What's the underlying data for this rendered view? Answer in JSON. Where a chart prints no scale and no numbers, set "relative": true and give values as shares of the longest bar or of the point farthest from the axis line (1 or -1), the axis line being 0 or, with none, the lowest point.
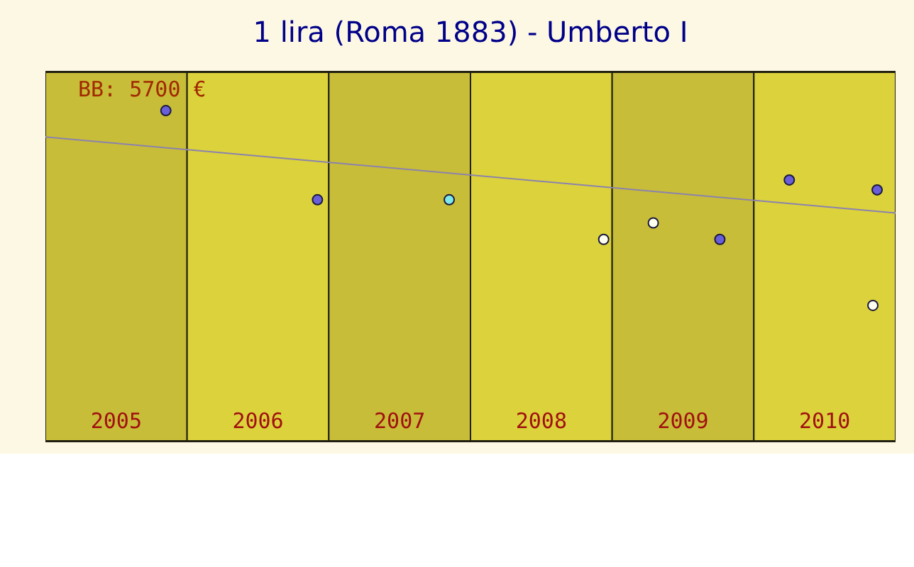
{
  "chart_data": {
    "type": "scatter",
    "title": "1 lira (Roma 1883) - Umberto I",
    "annotations": [
      "BB: 5700 €"
    ],
    "relative": true,
    "xlim": [
      2005,
      2011
    ],
    "xticks": [
      {
        "value": 2005.5,
        "label": "2005"
      },
      {
        "value": 2006.5,
        "label": "2006"
      },
      {
        "value": 2007.5,
        "label": "2007"
      },
      {
        "value": 2008.5,
        "label": "2008"
      },
      {
        "value": 2009.5,
        "label": "2009"
      },
      {
        "value": 2010.5,
        "label": "2010"
      }
    ],
    "bands": [
      {
        "axis": "x",
        "from": 2005,
        "to": 2006,
        "color": "#c8bd38"
      },
      {
        "axis": "x",
        "from": 2006,
        "to": 2007,
        "color": "#dcd23c"
      },
      {
        "axis": "x",
        "from": 2007,
        "to": 2008,
        "color": "#c8bd38"
      },
      {
        "axis": "x",
        "from": 2008,
        "to": 2009,
        "color": "#dcd23c"
      },
      {
        "axis": "x",
        "from": 2009,
        "to": 2010,
        "color": "#c8bd38"
      },
      {
        "axis": "x",
        "from": 2010,
        "to": 2011,
        "color": "#dcd23c"
      }
    ],
    "series": [
      {
        "x": [
          2005.85,
          2006.92,
          2007.85,
          2008.94,
          2009.29,
          2009.76,
          2010.25,
          2010.87,
          2010.84
        ],
        "values": [
          1,
          0.73,
          0.73,
          0.61,
          0.66,
          0.61,
          0.79,
          0.76,
          0.41
        ],
        "marker": "circle",
        "colors": [
          "#6a5fd8",
          "#6a5fd8",
          "#7fe8e8",
          "#fffff0",
          "#fffff0",
          "#6a5fd8",
          "#6a5fd8",
          "#6a5fd8",
          "#fffff0"
        ]
      },
      {
        "type": "line",
        "x": [
          2005,
          2011
        ],
        "values": [
          0.92,
          0.69
        ],
        "color": "#8a82b0",
        "line_style": "solid"
      }
    ]
  }
}
